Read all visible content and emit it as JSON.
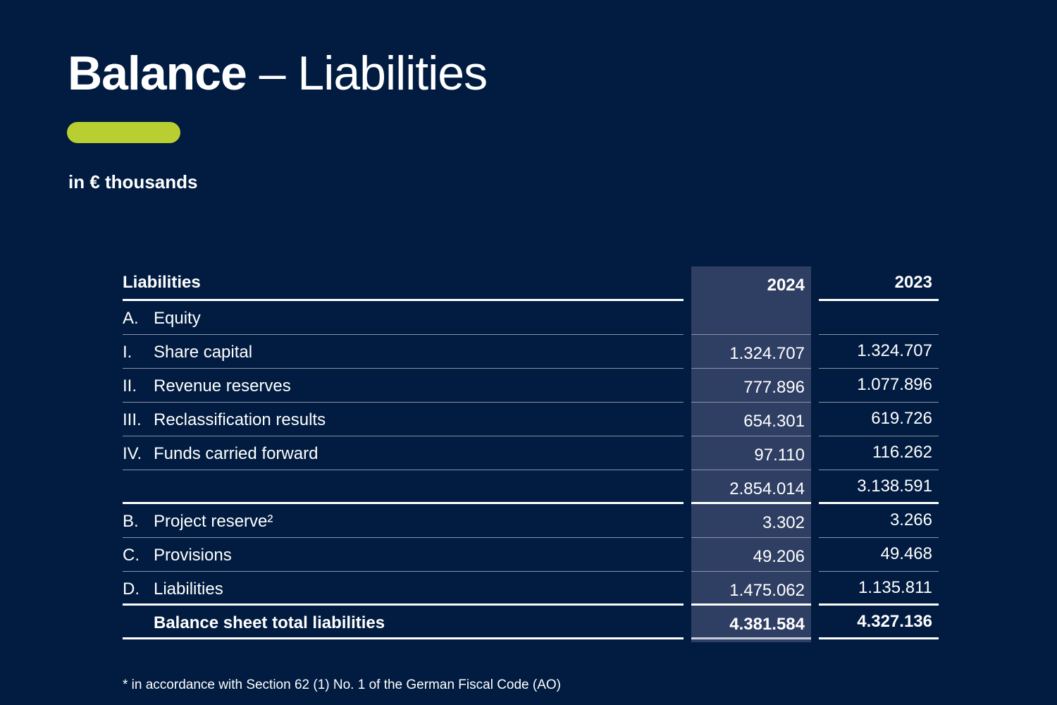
{
  "title": {
    "bold": "Balance",
    "rest": " – Liabilities"
  },
  "accent_color": "#b9cf31",
  "background_color": "#011c40",
  "highlight_column_color": "#2f3f63",
  "unit": "in € thousands",
  "table": {
    "header": {
      "label": "Liabilities",
      "col_2024": "2024",
      "col_2023": "2023"
    },
    "rows": [
      {
        "num": "A.",
        "label": "Equity",
        "v2024": "",
        "v2023": ""
      },
      {
        "num": "I.",
        "label": "Share capital",
        "v2024": "1.324.707",
        "v2023": "1.324.707"
      },
      {
        "num": "II.",
        "label": "Revenue reserves",
        "v2024": "777.896",
        "v2023": "1.077.896"
      },
      {
        "num": "III.",
        "label": "Reclassification results",
        "v2024": "654.301",
        "v2023": "619.726"
      },
      {
        "num": "IV.",
        "label": "Funds carried forward",
        "v2024": "97.110",
        "v2023": "116.262"
      },
      {
        "num": "",
        "label": "",
        "v2024": "2.854.014",
        "v2023": "3.138.591"
      },
      {
        "num": "B.",
        "label": "Project reserve²",
        "v2024": "3.302",
        "v2023": "3.266"
      },
      {
        "num": "C.",
        "label": "Provisions",
        "v2024": "49.206",
        "v2023": "49.468"
      },
      {
        "num": "D.",
        "label": "Liabilities",
        "v2024": "1.475.062",
        "v2023": "1.135.811"
      }
    ],
    "total": {
      "label": "Balance sheet total liabilities",
      "v2024": "4.381.584",
      "v2023": "4.327.136"
    }
  },
  "footnote": "* in accordance with Section 62 (1) No. 1 of the German Fiscal Code (AO)"
}
